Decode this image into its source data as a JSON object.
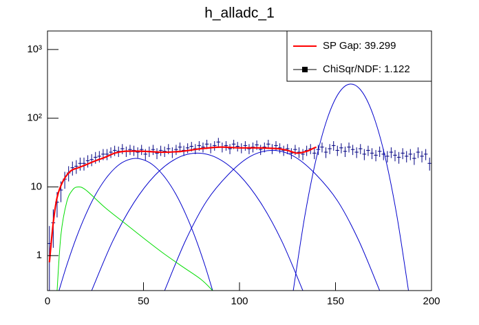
{
  "chart_data": {
    "type": "errorbar",
    "title": "h_alladc_1",
    "color": "#000080",
    "x": [
      1,
      3,
      5,
      7,
      9,
      11,
      13,
      15,
      17,
      19,
      21,
      23,
      25,
      27,
      29,
      31,
      33,
      35,
      37,
      39,
      41,
      43,
      45,
      47,
      49,
      51,
      53,
      55,
      57,
      59,
      61,
      63,
      65,
      67,
      69,
      71,
      73,
      75,
      77,
      79,
      81,
      83,
      85,
      87,
      89,
      91,
      93,
      95,
      97,
      99,
      101,
      103,
      105,
      107,
      109,
      111,
      113,
      115,
      117,
      119,
      121,
      123,
      125,
      127,
      129,
      131,
      133,
      135,
      137,
      139,
      141,
      143,
      145,
      147,
      149,
      151,
      153,
      155,
      157,
      159,
      161,
      163,
      165,
      167,
      169,
      171,
      173,
      175,
      177,
      179,
      181,
      183,
      185,
      187,
      189,
      191,
      193,
      195,
      197,
      199
    ],
    "values": [
      1.5,
      3,
      6,
      9,
      13,
      16,
      19,
      20,
      22,
      22,
      24,
      25,
      27,
      28,
      30,
      30,
      32,
      34,
      33,
      36,
      33,
      35,
      34,
      32,
      35,
      30,
      33,
      35,
      31,
      34,
      33,
      36,
      32,
      35,
      38,
      34,
      37,
      39,
      36,
      40,
      38,
      42,
      37,
      40,
      45,
      38,
      40,
      36,
      42,
      39,
      37,
      40,
      36,
      38,
      41,
      35,
      38,
      42,
      36,
      40,
      37,
      34,
      36,
      31,
      35,
      32,
      30,
      34,
      36,
      31,
      35,
      38,
      32,
      36,
      40,
      34,
      37,
      33,
      38,
      35,
      32,
      36,
      30,
      34,
      31,
      29,
      33,
      30,
      28,
      32,
      29,
      27,
      31,
      28,
      30,
      26,
      32,
      28,
      30,
      22
    ],
    "errors": [
      1.2,
      1.7,
      2.4,
      3,
      3.6,
      4,
      4.4,
      4.5,
      4.7,
      4.7,
      4.9,
      5,
      5.2,
      5.3,
      5.5,
      5.5,
      5.7,
      5.8,
      5.7,
      6,
      5.7,
      5.9,
      5.8,
      5.7,
      5.9,
      5.5,
      5.7,
      5.9,
      5.6,
      5.8,
      5.7,
      6,
      5.7,
      5.9,
      6.2,
      5.8,
      6.1,
      6.2,
      6,
      6.3,
      6.2,
      6.5,
      6.1,
      6.3,
      6.7,
      6.2,
      6.3,
      6,
      6.5,
      6.2,
      6.1,
      6.3,
      6,
      6.2,
      6.4,
      5.9,
      6.2,
      6.5,
      6,
      6.3,
      6.1,
      5.8,
      6,
      5.6,
      5.9,
      5.7,
      5.5,
      5.8,
      6,
      5.6,
      5.9,
      6.2,
      5.7,
      6,
      6.3,
      5.8,
      6.1,
      5.7,
      6.2,
      5.9,
      5.7,
      6,
      5.5,
      5.8,
      5.6,
      5.4,
      5.7,
      5.5,
      5.3,
      5.7,
      5.4,
      5.2,
      5.6,
      5.3,
      5.5,
      5.1,
      5.7,
      5.3,
      5.5,
      4.7
    ],
    "curves": [
      {
        "color": "#0000cc",
        "x": [
          6,
          10,
          15,
          20,
          25,
          30,
          35,
          40,
          46,
          52,
          57,
          62,
          67,
          72,
          77,
          82,
          86
        ],
        "values": [
          0.31,
          0.72,
          1.82,
          4.0,
          7.7,
          12.8,
          18.6,
          23.5,
          26,
          23.5,
          18.6,
          12.8,
          7.7,
          4.0,
          1.82,
          0.72,
          0.31
        ]
      },
      {
        "color": "#0000cc",
        "x": [
          23,
          34,
          45,
          56,
          67,
          78,
          89,
          100,
          111,
          122,
          133
        ],
        "values": [
          0.31,
          1.63,
          5.9,
          14.8,
          25.8,
          31,
          25.8,
          14.8,
          5.9,
          1.63,
          0.31
        ]
      },
      {
        "color": "#0000cc",
        "x": [
          61,
          72,
          83,
          95,
          106,
          117,
          128,
          139,
          151,
          162,
          173
        ],
        "values": [
          0.31,
          1.68,
          6.3,
          16.0,
          28.2,
          34,
          28.2,
          16.0,
          6.3,
          1.68,
          0.31
        ]
      },
      {
        "color": "#0000cc",
        "x": [
          128,
          134,
          140,
          146,
          152,
          158,
          164,
          170,
          176,
          182,
          188
        ],
        "values": [
          0.31,
          3.75,
          26.1,
          104,
          239,
          315,
          239,
          104,
          26.1,
          3.75,
          0.31
        ]
      },
      {
        "color": "#00dd00",
        "x": [
          5,
          7,
          10,
          13,
          16,
          20,
          30,
          40,
          50,
          60,
          70,
          80,
          86
        ],
        "values": [
          0.31,
          2,
          6,
          9,
          10,
          9,
          5,
          3,
          1.8,
          1.1,
          0.7,
          0.45,
          0.31
        ]
      },
      {
        "color": "#ff0000",
        "x": [
          1,
          3,
          5,
          8,
          12,
          16,
          20,
          25,
          30,
          35,
          40,
          50,
          60,
          70,
          80,
          90,
          100,
          110,
          120,
          125,
          130,
          135,
          138,
          140
        ],
        "values": [
          0.8,
          3,
          7,
          12,
          17,
          19,
          21,
          24,
          27,
          31,
          33,
          33,
          32,
          33,
          36,
          38,
          37,
          37,
          36,
          34,
          31,
          33,
          36,
          38
        ]
      }
    ],
    "legend": [
      {
        "label": "SP Gap: 39.299",
        "color": "#ff0000"
      },
      {
        "label": "ChiSqr/NDF: 1.122",
        "color": "#000000"
      }
    ],
    "xlim": [
      0,
      200
    ],
    "xticks": [
      0,
      50,
      100,
      150,
      200
    ],
    "ylim": [
      0.31,
      1860
    ],
    "yticks": [
      1,
      10,
      {
        "value": 100,
        "label": "10²"
      },
      {
        "value": 1000,
        "label": "10³"
      }
    ],
    "log_y": true
  }
}
